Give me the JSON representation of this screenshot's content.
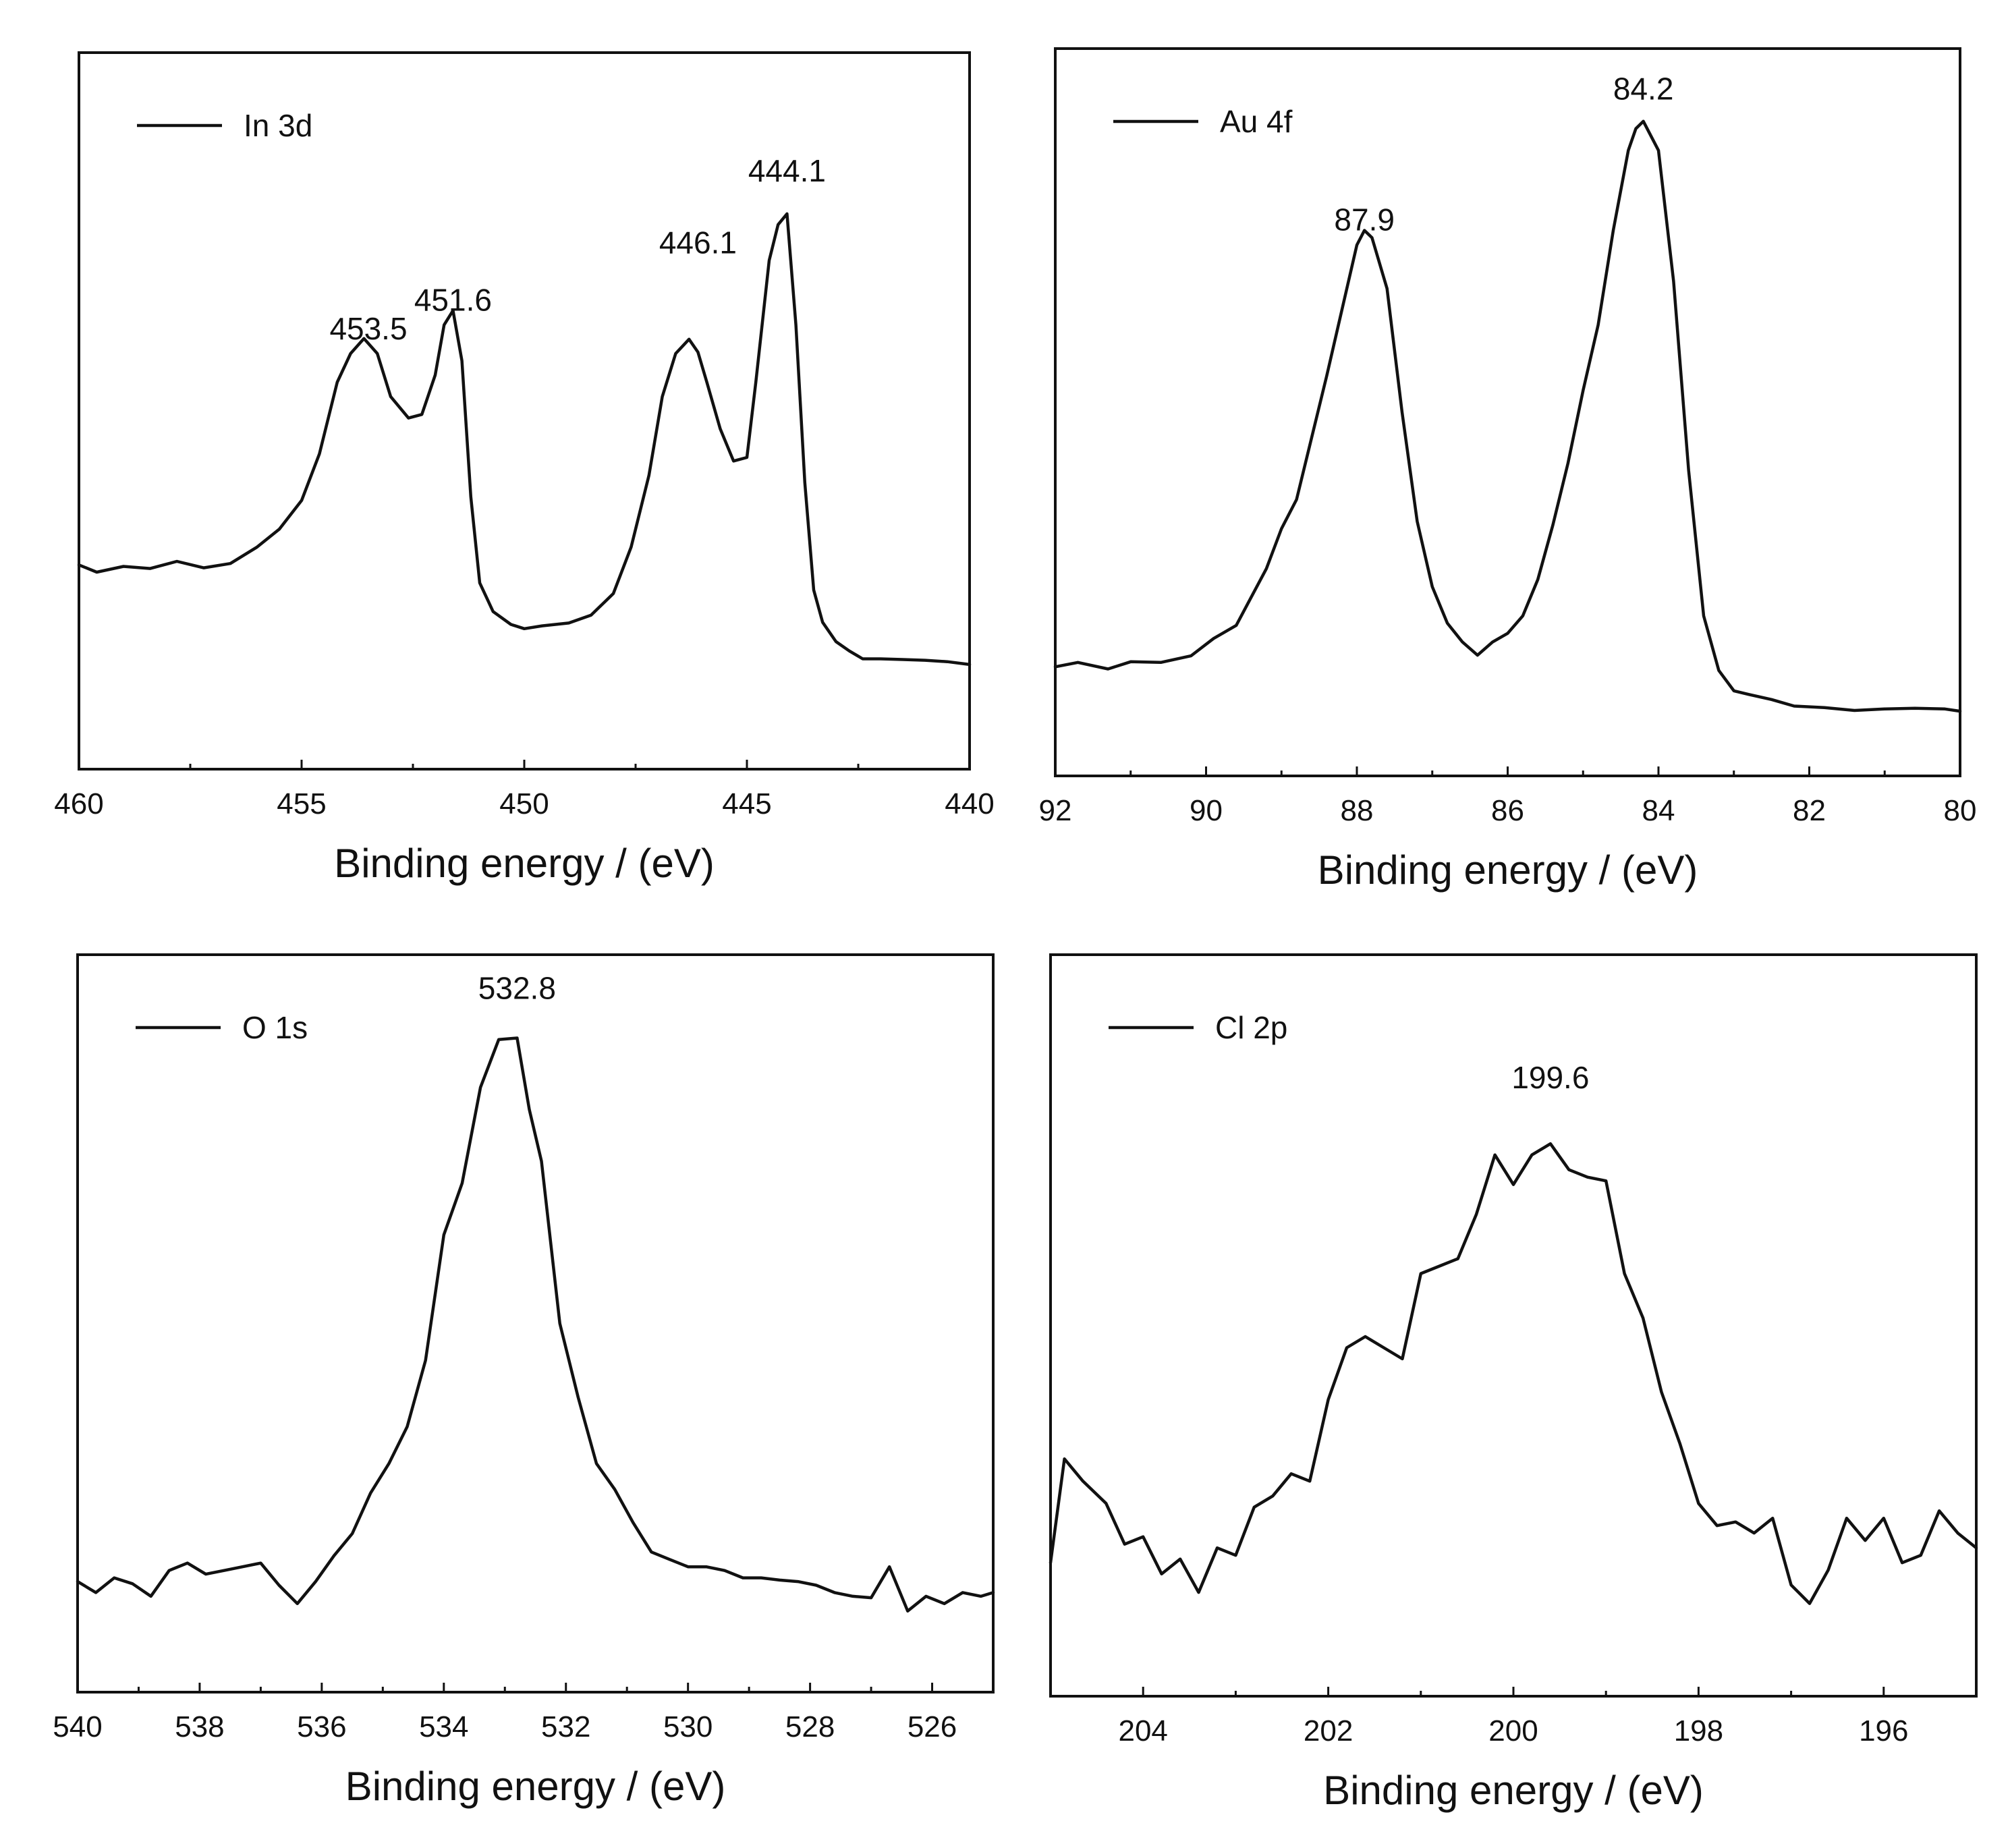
{
  "chart_data": [
    {
      "type": "line",
      "id": "in3d",
      "legend": "In 3d",
      "xlabel": "Binding energy / (eV)",
      "ylabel": "",
      "xlim": [
        460,
        440
      ],
      "ylim": [
        0,
        100
      ],
      "xticks": [
        460,
        455,
        450,
        445,
        440
      ],
      "xtick_labels": [
        "460",
        "455",
        "450",
        "445",
        "440"
      ],
      "minor_step": 2.5,
      "annotations": [
        {
          "text": "453.5",
          "x": 453.5,
          "y": 60
        },
        {
          "text": "451.6",
          "x": 451.6,
          "y": 64
        },
        {
          "text": "446.1",
          "x": 446.1,
          "y": 72
        },
        {
          "text": "444.1",
          "x": 444.1,
          "y": 82
        }
      ],
      "series": [
        {
          "name": "In 3d",
          "x": [
            460,
            459.6,
            459,
            458.4,
            457.8,
            457.2,
            456.6,
            456,
            455.5,
            455,
            454.6,
            454.2,
            453.9,
            453.6,
            453.3,
            453,
            452.6,
            452.3,
            452,
            451.8,
            451.6,
            451.4,
            451.2,
            451,
            450.7,
            450.3,
            450,
            449.6,
            449,
            448.5,
            448,
            447.6,
            447.2,
            446.9,
            446.6,
            446.3,
            446.1,
            445.9,
            445.6,
            445.3,
            445,
            444.8,
            444.5,
            444.3,
            444.1,
            443.9,
            443.7,
            443.5,
            443.3,
            443,
            442.7,
            442.4,
            442,
            441.5,
            441,
            440.5,
            440
          ],
          "y": [
            28.5,
            27.5,
            28.3,
            28,
            29,
            28.1,
            28.7,
            31,
            33.5,
            37.5,
            44,
            54,
            58,
            60.1,
            58,
            52,
            49,
            49.5,
            55,
            62,
            64,
            57,
            38,
            26,
            22,
            20.2,
            19.6,
            20,
            20.4,
            21.5,
            24.5,
            31,
            41,
            52,
            58,
            60,
            58.2,
            54,
            47.5,
            43,
            43.5,
            54,
            71,
            76,
            77.5,
            62,
            40,
            25,
            20.5,
            17.8,
            16.5,
            15.4,
            15.4,
            15.3,
            15.2,
            15,
            14.6
          ]
        }
      ]
    },
    {
      "type": "line",
      "id": "au4f",
      "legend": "Au 4f",
      "xlabel": "Binding energy / (eV)",
      "ylabel": "",
      "xlim": [
        92,
        80
      ],
      "ylim": [
        0,
        100
      ],
      "xticks": [
        92,
        90,
        88,
        86,
        84,
        82,
        80
      ],
      "xtick_labels": [
        "92",
        "90",
        "88",
        "86",
        "84",
        "82",
        "80"
      ],
      "minor_step": 1,
      "annotations": [
        {
          "text": "87.9",
          "x": 87.9,
          "y": 75
        },
        {
          "text": "84.2",
          "x": 84.2,
          "y": 93
        }
      ],
      "series": [
        {
          "name": "Au 4f",
          "x": [
            92,
            91.7,
            91.3,
            91,
            90.6,
            90.2,
            89.9,
            89.6,
            89.2,
            89,
            88.8,
            88.4,
            88,
            87.9,
            87.8,
            87.6,
            87.4,
            87.2,
            87,
            86.8,
            86.6,
            86.4,
            86.2,
            86,
            85.8,
            85.6,
            85.4,
            85.2,
            85,
            84.8,
            84.6,
            84.4,
            84.3,
            84.2,
            84,
            83.8,
            83.6,
            83.4,
            83.2,
            83,
            82.8,
            82.5,
            82.2,
            81.8,
            81.4,
            81,
            80.6,
            80.2,
            80
          ],
          "y": [
            15,
            15.6,
            14.7,
            15.7,
            15.6,
            16.5,
            18.9,
            20.7,
            28.5,
            34,
            38,
            55,
            73,
            75,
            74,
            67,
            50,
            35,
            26,
            21,
            18.4,
            16.6,
            18.4,
            19.6,
            22,
            27,
            34.5,
            43,
            53,
            62,
            75,
            86,
            89,
            90,
            86,
            68,
            42,
            22,
            14.5,
            11.7,
            11.2,
            10.5,
            9.6,
            9.4,
            9,
            9.2,
            9.3,
            9.2,
            8.9
          ]
        }
      ]
    },
    {
      "type": "line",
      "id": "o1s",
      "legend": "O 1s",
      "xlabel": "Binding energy / (eV)",
      "ylabel": "",
      "xlim": [
        540,
        525
      ],
      "ylim": [
        0,
        100
      ],
      "xticks": [
        540,
        538,
        536,
        534,
        532,
        530,
        528,
        526
      ],
      "xtick_labels": [
        "540",
        "538",
        "536",
        "534",
        "532",
        "530",
        "528",
        "526"
      ],
      "minor_step": 1,
      "annotations": [
        {
          "text": "532.8",
          "x": 532.8,
          "y": 94
        }
      ],
      "series": [
        {
          "name": "O 1s",
          "x": [
            540,
            539.7,
            539.4,
            539.1,
            538.8,
            538.5,
            538.2,
            537.9,
            537.6,
            537.3,
            537,
            536.7,
            536.4,
            536.1,
            535.8,
            535.5,
            535.2,
            534.9,
            534.6,
            534.3,
            534,
            533.7,
            533.4,
            533.1,
            532.8,
            532.6,
            532.4,
            532.1,
            531.8,
            531.5,
            531.2,
            530.9,
            530.6,
            530.3,
            530,
            529.7,
            529.4,
            529.1,
            528.8,
            528.5,
            528.2,
            527.9,
            527.6,
            527.3,
            527,
            526.7,
            526.4,
            526.1,
            525.8,
            525.5,
            525.2,
            525
          ],
          "y": [
            15,
            13.5,
            15.5,
            14.7,
            13,
            16.5,
            17.5,
            16,
            16.5,
            17,
            17.5,
            14.5,
            12,
            15,
            18.5,
            21.5,
            27,
            31,
            36,
            45,
            62,
            69,
            82,
            88.5,
            88.7,
            79,
            72,
            50,
            40,
            31,
            27.5,
            23,
            19,
            18,
            17,
            17,
            16.5,
            15.5,
            15.5,
            15.2,
            15,
            14.5,
            13.5,
            13,
            12.8,
            17,
            11,
            13,
            12,
            13.5,
            13,
            13.5
          ]
        }
      ]
    },
    {
      "type": "line",
      "id": "cl2p",
      "legend": "Cl 2p",
      "xlabel": "Binding energy / (eV)",
      "ylabel": "",
      "xlim": [
        205,
        195
      ],
      "ylim": [
        0,
        100
      ],
      "xticks": [
        204,
        202,
        200,
        198,
        196
      ],
      "xtick_labels": [
        "204",
        "202",
        "200",
        "198",
        "196"
      ],
      "minor_step": 1,
      "annotations": [
        {
          "text": "199.6",
          "x": 199.6,
          "y": 82
        }
      ],
      "series": [
        {
          "name": "Cl 2p",
          "x": [
            205,
            204.85,
            204.65,
            204.4,
            204.2,
            204,
            203.8,
            203.6,
            203.4,
            203.2,
            203,
            202.8,
            202.6,
            202.4,
            202.2,
            202,
            201.8,
            201.6,
            201.4,
            201.2,
            201,
            200.8,
            200.6,
            200.4,
            200.2,
            200,
            199.8,
            199.6,
            199.4,
            199.2,
            199,
            198.8,
            198.6,
            198.4,
            198.2,
            198,
            197.8,
            197.6,
            197.4,
            197.2,
            197,
            196.8,
            196.6,
            196.4,
            196.2,
            196,
            195.8,
            195.6,
            195.4,
            195.2,
            195
          ],
          "y": [
            18,
            32,
            29,
            26,
            20.5,
            21.5,
            16.5,
            18.5,
            14,
            20,
            19,
            25.5,
            27,
            30,
            29,
            40,
            47,
            48.5,
            47,
            45.5,
            57,
            58,
            59,
            65,
            73,
            69,
            73,
            74.5,
            71,
            70,
            69.5,
            57,
            51,
            41,
            34,
            26,
            23,
            23.5,
            22,
            24,
            15,
            12.5,
            17,
            24,
            21,
            24,
            18,
            19,
            25,
            22,
            20
          ]
        }
      ]
    }
  ]
}
